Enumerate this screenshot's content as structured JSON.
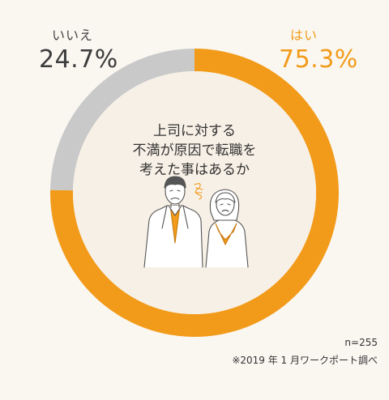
{
  "chart_data": {
    "type": "pie",
    "style": "donut",
    "slices": [
      {
        "label": "はい",
        "value": 75.3,
        "display": "75.3%",
        "color": "#F29B1A"
      },
      {
        "label": "いいえ",
        "value": 24.7,
        "display": "24.7%",
        "color": "#C9C9C9"
      }
    ],
    "center_question": [
      "上司に対する",
      "不満が原因で転職を",
      "考えた事はあるか"
    ],
    "sample_size": "n=255",
    "source": "※2019 年 1 月ワークポート調べ"
  },
  "colors": {
    "background": "#FAF7F1",
    "accent": "#F29B1A",
    "secondary": "#C9C9C9",
    "center_fill": "#F7F0E6"
  },
  "icons": {
    "illustration": "two-frustrated-office-workers"
  }
}
